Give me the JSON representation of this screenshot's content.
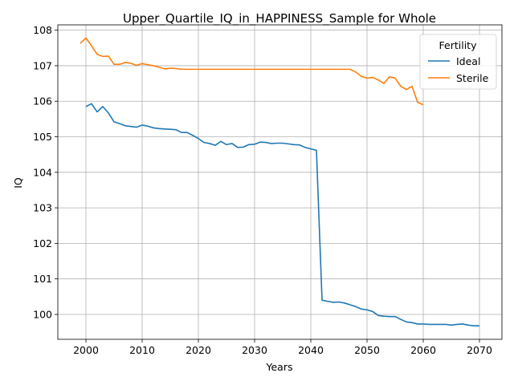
{
  "chart_data": {
    "type": "line",
    "title": "Upper_Quartile_IQ_in_HAPPINESS_Sample for Whole",
    "xlabel": "Years",
    "ylabel": "IQ",
    "xlim": [
      1995,
      2074
    ],
    "ylim": [
      99.3,
      108.15
    ],
    "xticks": [
      2000,
      2010,
      2020,
      2030,
      2040,
      2050,
      2060,
      2070
    ],
    "yticks": [
      100,
      101,
      102,
      103,
      104,
      105,
      106,
      107,
      108
    ],
    "grid": true,
    "legend": {
      "title": "Fertility",
      "placement": "upper-right"
    },
    "series": [
      {
        "name": "Ideal",
        "color": "#1f77b4",
        "x": [
          2000,
          2001,
          2002,
          2003,
          2004,
          2005,
          2006,
          2007,
          2008,
          2009,
          2010,
          2011,
          2012,
          2013,
          2014,
          2015,
          2016,
          2017,
          2018,
          2019,
          2020,
          2021,
          2022,
          2023,
          2024,
          2025,
          2026,
          2027,
          2028,
          2029,
          2030,
          2031,
          2032,
          2033,
          2034,
          2035,
          2036,
          2037,
          2038,
          2039,
          2040,
          2041,
          2042,
          2043,
          2044,
          2045,
          2046,
          2047,
          2048,
          2049,
          2050,
          2051,
          2052,
          2053,
          2054,
          2055,
          2056,
          2057,
          2058,
          2059,
          2060,
          2061,
          2062,
          2063,
          2064,
          2065,
          2066,
          2067,
          2068,
          2069,
          2070
        ],
        "y": [
          105.85,
          105.93,
          105.7,
          105.85,
          105.67,
          105.42,
          105.37,
          105.31,
          105.29,
          105.27,
          105.33,
          105.3,
          105.25,
          105.23,
          105.22,
          105.21,
          105.2,
          105.12,
          105.12,
          105.04,
          104.95,
          104.84,
          104.81,
          104.76,
          104.87,
          104.78,
          104.81,
          104.7,
          104.71,
          104.78,
          104.79,
          104.85,
          104.84,
          104.81,
          104.82,
          104.82,
          104.8,
          104.78,
          104.77,
          104.7,
          104.66,
          104.62,
          100.4,
          100.37,
          100.34,
          100.35,
          100.32,
          100.27,
          100.22,
          100.15,
          100.13,
          100.08,
          99.97,
          99.95,
          99.94,
          99.94,
          99.86,
          99.79,
          99.77,
          99.73,
          99.73,
          99.72,
          99.72,
          99.72,
          99.72,
          99.7,
          99.72,
          99.73,
          99.7,
          99.68,
          99.68
        ]
      },
      {
        "name": "Sterile",
        "color": "#ff7f0e",
        "x": [
          1999,
          2000,
          2001,
          2002,
          2003,
          2004,
          2005,
          2006,
          2007,
          2008,
          2009,
          2010,
          2011,
          2012,
          2013,
          2014,
          2015,
          2016,
          2017,
          2018,
          2019,
          2020,
          2021,
          2022,
          2023,
          2024,
          2025,
          2026,
          2027,
          2028,
          2029,
          2030,
          2031,
          2032,
          2033,
          2034,
          2035,
          2036,
          2037,
          2038,
          2039,
          2040,
          2041,
          2042,
          2043,
          2044,
          2045,
          2046,
          2047,
          2048,
          2049,
          2050,
          2051,
          2052,
          2053,
          2054,
          2055,
          2056,
          2057,
          2058,
          2059,
          2060
        ],
        "y": [
          107.63,
          107.78,
          107.56,
          107.32,
          107.26,
          107.27,
          107.04,
          107.04,
          107.09,
          107.07,
          107.01,
          107.06,
          107.03,
          107.0,
          106.96,
          106.91,
          106.93,
          106.92,
          106.9,
          106.9,
          106.9,
          106.9,
          106.9,
          106.9,
          106.9,
          106.9,
          106.9,
          106.9,
          106.9,
          106.9,
          106.9,
          106.9,
          106.9,
          106.9,
          106.9,
          106.9,
          106.9,
          106.9,
          106.9,
          106.9,
          106.9,
          106.9,
          106.9,
          106.9,
          106.9,
          106.9,
          106.9,
          106.9,
          106.9,
          106.82,
          106.7,
          106.65,
          106.67,
          106.6,
          106.5,
          106.69,
          106.65,
          106.42,
          106.33,
          106.42,
          105.97,
          105.9
        ]
      }
    ]
  }
}
